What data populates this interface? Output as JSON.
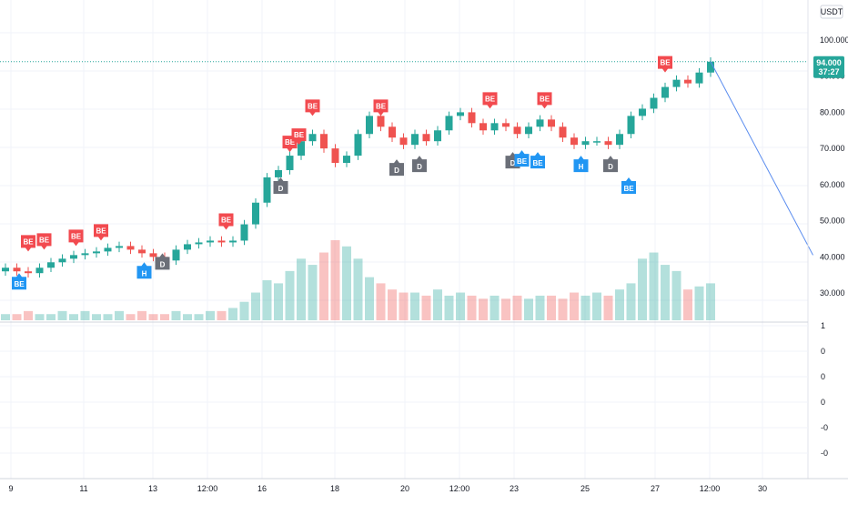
{
  "currency": "USDT",
  "colors": {
    "up": "#26a69a",
    "down": "#ef5350",
    "bullish_marker": "#2196f3",
    "bearish_marker": "#f24a4f",
    "neutral_marker": "#6b6f78",
    "price_line": "#26a69a",
    "projection": "#5b8def",
    "grid": "#f0f3fa"
  },
  "chart_data": {
    "type": "candlestick",
    "y_axis_ticks": [
      "100.000",
      "90.000",
      "80.000",
      "70.000",
      "60.000",
      "50.000",
      "40.000",
      "30.000"
    ],
    "x_axis_ticks": [
      "9",
      "11",
      "13",
      "12:00",
      "16",
      "18",
      "20",
      "12:00",
      "23",
      "25",
      "27",
      "12:00",
      "30"
    ],
    "ylim": [
      28,
      102
    ],
    "last_price": "94.000",
    "countdown": "37:27",
    "candles": [
      {
        "x": 0.0,
        "c": 37
      },
      {
        "x": 0.5,
        "c": 36
      },
      {
        "x": 1.0,
        "c": 35.5
      },
      {
        "x": 1.5,
        "c": 37
      },
      {
        "x": 2.0,
        "c": 38.5
      },
      {
        "x": 2.5,
        "c": 39.5
      },
      {
        "x": 3.0,
        "c": 40.5
      },
      {
        "x": 3.5,
        "c": 41
      },
      {
        "x": 4.0,
        "c": 41.5
      },
      {
        "x": 4.5,
        "c": 42.5
      },
      {
        "x": 5.0,
        "c": 43
      },
      {
        "x": 5.5,
        "c": 42
      },
      {
        "x": 6.0,
        "c": 41
      },
      {
        "x": 6.5,
        "c": 40
      },
      {
        "x": 7.0,
        "c": 39
      },
      {
        "x": 7.5,
        "c": 42
      },
      {
        "x": 8.0,
        "c": 43.5
      },
      {
        "x": 8.5,
        "c": 44
      },
      {
        "x": 9.0,
        "c": 44.5
      },
      {
        "x": 9.5,
        "c": 44
      },
      {
        "x": 10.0,
        "c": 44.5
      },
      {
        "x": 10.5,
        "c": 49
      },
      {
        "x": 11.0,
        "c": 55
      },
      {
        "x": 11.5,
        "c": 62
      },
      {
        "x": 12.0,
        "c": 64
      },
      {
        "x": 12.5,
        "c": 68
      },
      {
        "x": 13.0,
        "c": 72
      },
      {
        "x": 13.5,
        "c": 74
      },
      {
        "x": 14.0,
        "c": 70
      },
      {
        "x": 14.5,
        "c": 66
      },
      {
        "x": 15.0,
        "c": 68
      },
      {
        "x": 15.5,
        "c": 74
      },
      {
        "x": 16.0,
        "c": 79
      },
      {
        "x": 16.5,
        "c": 76
      },
      {
        "x": 17.0,
        "c": 73
      },
      {
        "x": 17.5,
        "c": 71
      },
      {
        "x": 18.0,
        "c": 74
      },
      {
        "x": 18.5,
        "c": 72
      },
      {
        "x": 19.0,
        "c": 75
      },
      {
        "x": 19.5,
        "c": 79
      },
      {
        "x": 20.0,
        "c": 80
      },
      {
        "x": 20.5,
        "c": 77
      },
      {
        "x": 21.0,
        "c": 75
      },
      {
        "x": 21.5,
        "c": 77
      },
      {
        "x": 22.0,
        "c": 76
      },
      {
        "x": 22.5,
        "c": 74
      },
      {
        "x": 23.0,
        "c": 76
      },
      {
        "x": 23.5,
        "c": 78
      },
      {
        "x": 24.0,
        "c": 76
      },
      {
        "x": 24.5,
        "c": 73
      },
      {
        "x": 25.0,
        "c": 71
      },
      {
        "x": 25.5,
        "c": 72
      },
      {
        "x": 26.0,
        "c": 72
      },
      {
        "x": 26.5,
        "c": 71
      },
      {
        "x": 27.0,
        "c": 74
      },
      {
        "x": 27.5,
        "c": 79
      },
      {
        "x": 28.0,
        "c": 81
      },
      {
        "x": 28.5,
        "c": 84
      },
      {
        "x": 29.0,
        "c": 87
      },
      {
        "x": 29.5,
        "c": 89
      },
      {
        "x": 30.0,
        "c": 88
      },
      {
        "x": 30.5,
        "c": 91
      },
      {
        "x": 31.0,
        "c": 94
      }
    ],
    "volume": [
      2,
      2,
      3,
      2,
      2,
      3,
      2,
      3,
      2,
      2,
      3,
      2,
      3,
      2,
      2,
      3,
      2,
      2,
      3,
      3,
      4,
      6,
      9,
      13,
      12,
      16,
      20,
      18,
      22,
      26,
      24,
      20,
      14,
      12,
      10,
      9,
      9,
      8,
      10,
      8,
      9,
      8,
      7,
      8,
      7,
      8,
      7,
      8,
      8,
      7,
      9,
      8,
      9,
      8,
      10,
      12,
      20,
      22,
      18,
      16,
      10,
      11,
      12
    ],
    "projection": {
      "from": {
        "x": 31.0,
        "y": 94
      },
      "to": {
        "x": 35.5,
        "y": 40.5
      }
    },
    "signals": [
      {
        "label": "BE",
        "kind": "bullish",
        "x": 0.6,
        "price": 36.5
      },
      {
        "label": "BE",
        "kind": "bearish",
        "x": 1.0,
        "price": 40.5
      },
      {
        "label": "BE",
        "kind": "bearish",
        "x": 1.7,
        "price": 41
      },
      {
        "label": "BE",
        "kind": "bearish",
        "x": 3.1,
        "price": 42
      },
      {
        "label": "BE",
        "kind": "bearish",
        "x": 4.2,
        "price": 43.5
      },
      {
        "label": "H",
        "kind": "bullish",
        "x": 6.1,
        "price": 39.5
      },
      {
        "label": "D",
        "kind": "neutral",
        "x": 6.9,
        "price": 42
      },
      {
        "label": "BE",
        "kind": "bearish",
        "x": 9.7,
        "price": 46.5
      },
      {
        "label": "D",
        "kind": "neutral",
        "x": 12.1,
        "price": 63
      },
      {
        "label": "BE",
        "kind": "bearish",
        "x": 12.5,
        "price": 68
      },
      {
        "label": "BE",
        "kind": "bearish",
        "x": 12.9,
        "price": 70
      },
      {
        "label": "BE",
        "kind": "bearish",
        "x": 13.5,
        "price": 78
      },
      {
        "label": "BE",
        "kind": "bearish",
        "x": 16.5,
        "price": 78
      },
      {
        "label": "D",
        "kind": "neutral",
        "x": 17.2,
        "price": 68
      },
      {
        "label": "D",
        "kind": "neutral",
        "x": 18.2,
        "price": 69
      },
      {
        "label": "BE",
        "kind": "bearish",
        "x": 21.3,
        "price": 80
      },
      {
        "label": "D",
        "kind": "neutral",
        "x": 22.3,
        "price": 70
      },
      {
        "label": "BE",
        "kind": "bullish",
        "x": 22.7,
        "price": 70.5
      },
      {
        "label": "BE",
        "kind": "bullish",
        "x": 23.4,
        "price": 70
      },
      {
        "label": "BE",
        "kind": "bearish",
        "x": 23.7,
        "price": 80
      },
      {
        "label": "H",
        "kind": "bullish",
        "x": 25.3,
        "price": 69
      },
      {
        "label": "D",
        "kind": "neutral",
        "x": 26.6,
        "price": 69
      },
      {
        "label": "BE",
        "kind": "bullish",
        "x": 27.4,
        "price": 63
      },
      {
        "label": "BE",
        "kind": "bearish",
        "x": 29.0,
        "price": 90
      }
    ]
  },
  "indicator_panel": {
    "ticks": [
      "1",
      "0",
      "0",
      "0",
      "-0",
      "-0"
    ]
  }
}
